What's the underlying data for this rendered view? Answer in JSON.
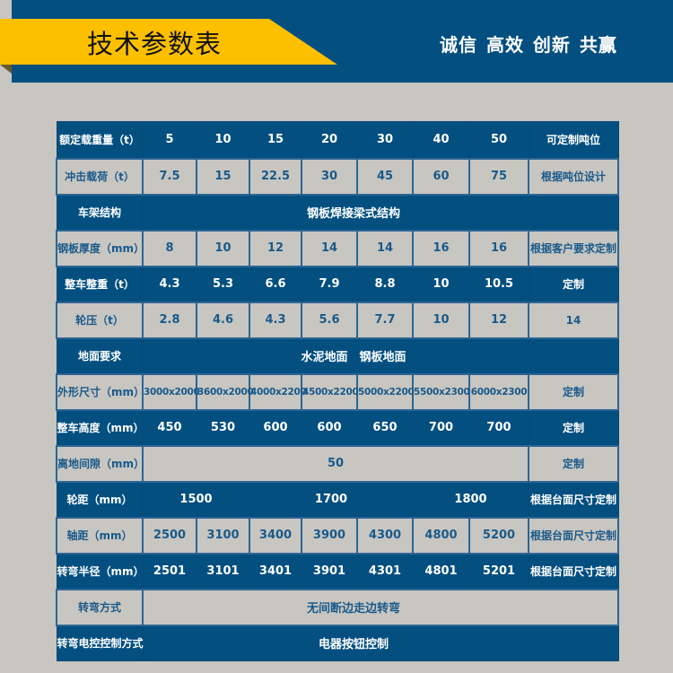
{
  "header": {
    "title": "技术参数表",
    "slogan": "诚信 高效 创新 共赢"
  },
  "colors": {
    "blue": "#024f80",
    "yellow": "#fcc000",
    "gray": "#c8c6c1"
  },
  "table": {
    "r0": {
      "label": "额定载重量（t）",
      "values": [
        "5",
        "10",
        "15",
        "20",
        "30",
        "40",
        "50"
      ],
      "note": "可定制吨位"
    },
    "r1": {
      "label": "冲击载荷（t）",
      "values": [
        "7.5",
        "15",
        "22.5",
        "30",
        "45",
        "60",
        "75"
      ],
      "note": "根据吨位设计"
    },
    "r2": {
      "label": "车架结构",
      "value": "钢板焊接梁式结构"
    },
    "r3": {
      "label": "钢板厚度（mm）",
      "values": [
        "8",
        "10",
        "12",
        "14",
        "14",
        "16",
        "16"
      ],
      "note": "根据客户要求定制"
    },
    "r4": {
      "label": "整车整重（t）",
      "values": [
        "4.3",
        "5.3",
        "6.6",
        "7.9",
        "8.8",
        "10",
        "10.5"
      ],
      "note": "定制"
    },
    "r5": {
      "label": "轮压（t）",
      "values": [
        "2.8",
        "4.6",
        "4.3",
        "5.6",
        "7.7",
        "10",
        "12"
      ],
      "note": "14"
    },
    "r6": {
      "label": "地面要求",
      "value": "水泥地面　钢板地面"
    },
    "r7": {
      "label": "外形尺寸（mm）",
      "values": [
        "3000x2000",
        "3600x2000",
        "4000x2200",
        "4500x2200",
        "5000x2200",
        "5500x2300",
        "6000x2300"
      ],
      "note": "定制"
    },
    "r8": {
      "label": "整车高度（mm）",
      "values": [
        "450",
        "530",
        "600",
        "600",
        "650",
        "700",
        "700"
      ],
      "note": "定制"
    },
    "r9": {
      "label": "离地间隙（mm）",
      "value": "50",
      "note": "定制"
    },
    "r10": {
      "label": "轮距（mm）",
      "values": [
        "1500",
        "1700",
        "1800"
      ],
      "note": "根据台面尺寸定制"
    },
    "r11": {
      "label": "轴距（mm）",
      "values": [
        "2500",
        "3100",
        "3400",
        "3900",
        "4300",
        "4800",
        "5200"
      ],
      "note": "根据台面尺寸定制"
    },
    "r12": {
      "label": "转弯半径（mm）",
      "values": [
        "2501",
        "3101",
        "3401",
        "3901",
        "4301",
        "4801",
        "5201"
      ],
      "note": "根据台面尺寸定制"
    },
    "r13": {
      "label": "转弯方式",
      "value": "无间断边走边转弯"
    },
    "r14": {
      "label": "转弯电控控制方式",
      "value": "电器按钮控制"
    }
  }
}
